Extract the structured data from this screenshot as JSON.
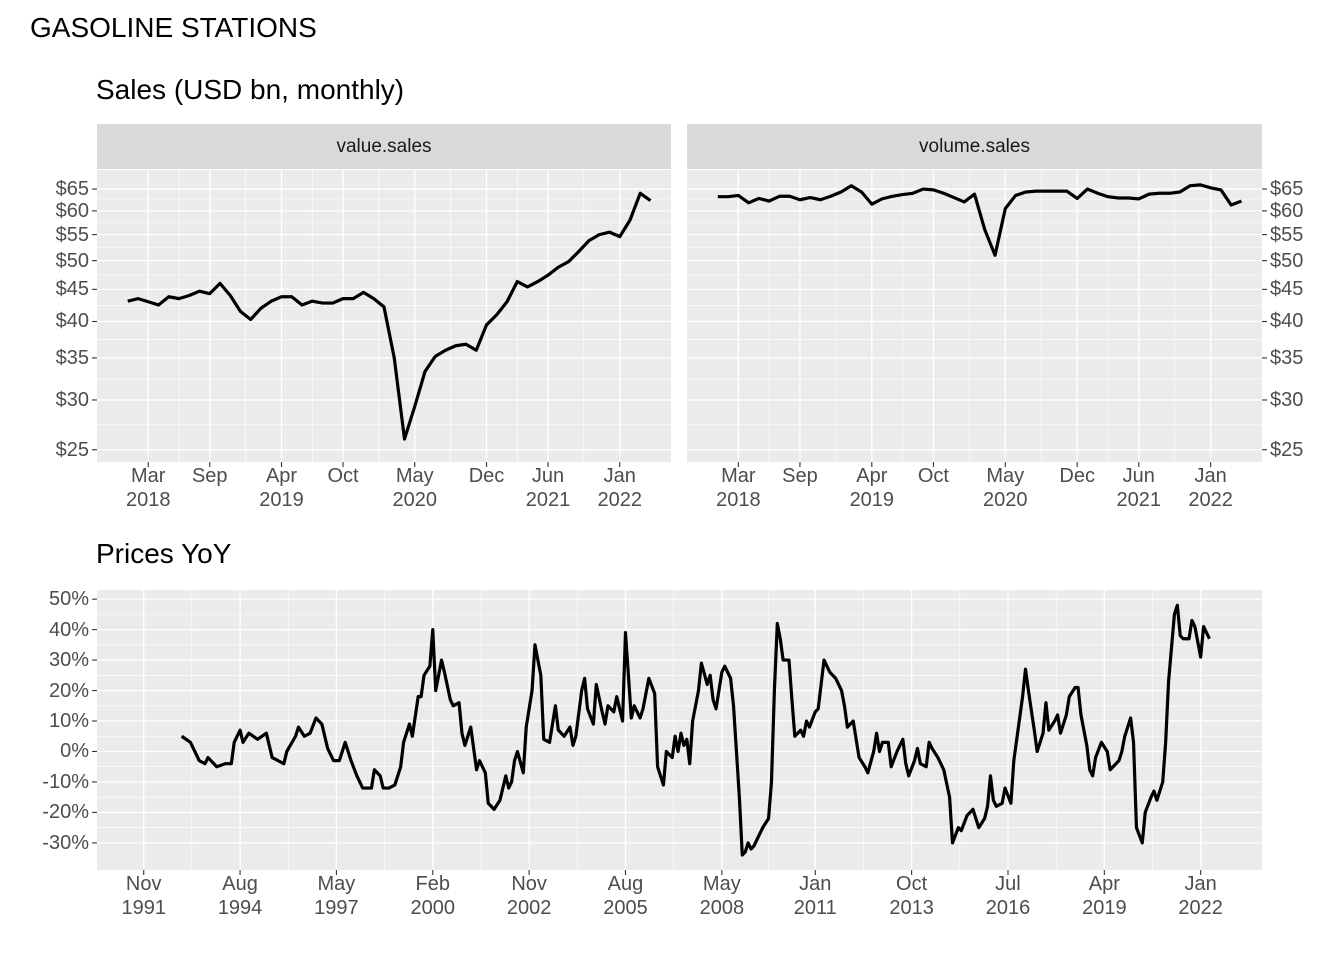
{
  "title": "GASOLINE STATIONS",
  "chart_data": [
    {
      "type": "line",
      "title": "Sales (USD bn, monthly)",
      "facet": true,
      "log_scale": true,
      "grid": true,
      "x": [
        "2018-01",
        "2018-02",
        "2018-03",
        "2018-04",
        "2018-05",
        "2018-06",
        "2018-07",
        "2018-08",
        "2018-09",
        "2018-10",
        "2018-11",
        "2018-12",
        "2019-01",
        "2019-02",
        "2019-03",
        "2019-04",
        "2019-05",
        "2019-06",
        "2019-07",
        "2019-08",
        "2019-09",
        "2019-10",
        "2019-11",
        "2019-12",
        "2020-01",
        "2020-02",
        "2020-03",
        "2020-04",
        "2020-05",
        "2020-06",
        "2020-07",
        "2020-08",
        "2020-09",
        "2020-10",
        "2020-11",
        "2020-12",
        "2021-01",
        "2021-02",
        "2021-03",
        "2021-04",
        "2021-05",
        "2021-06",
        "2021-07",
        "2021-08",
        "2021-09",
        "2021-10",
        "2021-11",
        "2021-12",
        "2022-01",
        "2022-02",
        "2022-03",
        "2022-04"
      ],
      "series": [
        {
          "name": "value.sales",
          "color": "#000000",
          "values": [
            43.1,
            43.5,
            43,
            42.5,
            43.8,
            43.5,
            44,
            44.7,
            44.3,
            46,
            44,
            41.5,
            40.3,
            42,
            43.1,
            43.8,
            43.8,
            42.5,
            43.1,
            42.8,
            42.8,
            43.5,
            43.5,
            44.5,
            43.5,
            42.2,
            35,
            26,
            29.3,
            33.3,
            35.2,
            36,
            36.6,
            36.8,
            36,
            39.5,
            41,
            43,
            46.3,
            45.4,
            46.3,
            47.4,
            48.8,
            49.8,
            51.7,
            53.8,
            55,
            55.5,
            54.6,
            58,
            64,
            62.3
          ]
        },
        {
          "name": "volume.sales",
          "color": "#000000",
          "values": [
            63.2,
            63.2,
            63.5,
            61.8,
            62.8,
            62.2,
            63.3,
            63.3,
            62.5,
            63,
            62.5,
            63.3,
            64.3,
            65.8,
            64.3,
            61.5,
            62.7,
            63.3,
            63.7,
            64,
            65,
            64.8,
            64,
            63,
            62,
            63.8,
            56,
            51,
            60.5,
            63.5,
            64.3,
            64.5,
            64.5,
            64.5,
            64.5,
            62.8,
            65,
            64,
            63.2,
            62.9,
            62.9,
            62.7,
            63.8,
            64,
            64,
            64.3,
            65.8,
            66,
            65.3,
            64.8,
            61.3,
            62.2
          ]
        }
      ],
      "xlim": [
        "2017-10",
        "2022-06"
      ],
      "xticks": [
        {
          "value": "2018-03",
          "label": "Mar\n2018"
        },
        {
          "value": "2018-09",
          "label": "Sep"
        },
        {
          "value": "2019-04",
          "label": "Apr\n2019"
        },
        {
          "value": "2019-10",
          "label": "Oct"
        },
        {
          "value": "2020-05",
          "label": "May\n2020"
        },
        {
          "value": "2020-12",
          "label": "Dec"
        },
        {
          "value": "2021-06",
          "label": "Jun\n2021"
        },
        {
          "value": "2022-01",
          "label": "Jan\n2022"
        }
      ],
      "ylim": [
        23.9,
        69.7
      ],
      "yticks": [
        {
          "value": 25,
          "label": "$25"
        },
        {
          "value": 30,
          "label": "$30"
        },
        {
          "value": 35,
          "label": "$35"
        },
        {
          "value": 40,
          "label": "$40"
        },
        {
          "value": 45,
          "label": "$45"
        },
        {
          "value": 50,
          "label": "$50"
        },
        {
          "value": 55,
          "label": "$55"
        },
        {
          "value": 60,
          "label": "$60"
        },
        {
          "value": 65,
          "label": "$65"
        }
      ]
    },
    {
      "type": "line",
      "title": "Prices YoY",
      "facet": false,
      "log_scale": false,
      "grid": true,
      "x": [
        "1992-12",
        "1993-03",
        "1993-06",
        "1993-08",
        "1993-09",
        "1993-12",
        "1994-03",
        "1994-05",
        "1994-06",
        "1994-08",
        "1994-09",
        "1994-11",
        "1995-02",
        "1995-05",
        "1995-07",
        "1995-09",
        "1995-11",
        "1995-12",
        "1996-03",
        "1996-04",
        "1996-06",
        "1996-08",
        "1996-10",
        "1996-12",
        "1997-02",
        "1997-04",
        "1997-06",
        "1997-08",
        "1997-10",
        "1997-12",
        "1998-02",
        "1998-05",
        "1998-06",
        "1998-08",
        "1998-09",
        "1998-11",
        "1999-01",
        "1999-03",
        "1999-04",
        "1999-06",
        "1999-07",
        "1999-09",
        "1999-10",
        "1999-11",
        "2000-01",
        "2000-02",
        "2000-03",
        "2000-05",
        "2000-06",
        "2000-08",
        "2000-09",
        "2000-11",
        "2000-12",
        "2001-01",
        "2001-03",
        "2001-05",
        "2001-06",
        "2001-08",
        "2001-09",
        "2001-11",
        "2002-01",
        "2002-03",
        "2002-04",
        "2002-05",
        "2002-06",
        "2002-07",
        "2002-09",
        "2002-10",
        "2002-12",
        "2003-01",
        "2003-03",
        "2003-04",
        "2003-06",
        "2003-08",
        "2003-09",
        "2003-11",
        "2004-01",
        "2004-02",
        "2004-03",
        "2004-05",
        "2004-06",
        "2004-07",
        "2004-09",
        "2004-10",
        "2004-12",
        "2005-01",
        "2005-02",
        "2005-04",
        "2005-05",
        "2005-07",
        "2005-08",
        "2005-10",
        "2005-11",
        "2006-01",
        "2006-02",
        "2006-04",
        "2006-06",
        "2006-07",
        "2006-09",
        "2006-10",
        "2006-12",
        "2007-01",
        "2007-02",
        "2007-03",
        "2007-04",
        "2007-05",
        "2007-06",
        "2007-07",
        "2007-09",
        "2007-10",
        "2007-12",
        "2008-01",
        "2008-02",
        "2008-03",
        "2008-05",
        "2008-06",
        "2008-08",
        "2008-09",
        "2008-11",
        "2008-12",
        "2009-01",
        "2009-02",
        "2009-03",
        "2009-04",
        "2009-06",
        "2009-07",
        "2009-09",
        "2009-10",
        "2009-11",
        "2009-12",
        "2010-01",
        "2010-02",
        "2010-04",
        "2010-05",
        "2010-06",
        "2010-08",
        "2010-09",
        "2010-10",
        "2010-11",
        "2011-01",
        "2011-02",
        "2011-03",
        "2011-04",
        "2011-06",
        "2011-08",
        "2011-10",
        "2011-11",
        "2011-12",
        "2012-02",
        "2012-03",
        "2012-04",
        "2012-06",
        "2012-07",
        "2012-09",
        "2012-10",
        "2012-11",
        "2012-12",
        "2013-02",
        "2013-03",
        "2013-05",
        "2013-07",
        "2013-08",
        "2013-09",
        "2013-11",
        "2013-12",
        "2014-01",
        "2014-03",
        "2014-04",
        "2014-05",
        "2014-07",
        "2014-09",
        "2014-11",
        "2014-12",
        "2015-02",
        "2015-03",
        "2015-05",
        "2015-07",
        "2015-08",
        "2015-09",
        "2015-11",
        "2015-12",
        "2016-01",
        "2016-02",
        "2016-03",
        "2016-05",
        "2016-06",
        "2016-08",
        "2016-09",
        "2016-10",
        "2016-12",
        "2017-01",
        "2017-02",
        "2017-04",
        "2017-05",
        "2017-07",
        "2017-08",
        "2017-09",
        "2017-11",
        "2017-12",
        "2018-01",
        "2018-03",
        "2018-04",
        "2018-06",
        "2018-07",
        "2018-08",
        "2018-10",
        "2018-11",
        "2018-12",
        "2019-01",
        "2019-03",
        "2019-05",
        "2019-06",
        "2019-07",
        "2019-09",
        "2019-10",
        "2019-11",
        "2020-01",
        "2020-02",
        "2020-03",
        "2020-05",
        "2020-06",
        "2020-08",
        "2020-09",
        "2020-10",
        "2020-12",
        "2021-01",
        "2021-02",
        "2021-04",
        "2021-05",
        "2021-06",
        "2021-07",
        "2021-09",
        "2021-10",
        "2021-11",
        "2022-01",
        "2022-02",
        "2022-04"
      ],
      "series": [
        {
          "name": "Prices YoY",
          "color": "#000000",
          "values": [
            5,
            3,
            -3,
            -4,
            -2,
            -5,
            -4,
            -4,
            3,
            7,
            3,
            6,
            4,
            6,
            -2,
            -3,
            -4,
            0,
            5,
            8,
            5,
            6,
            11,
            9,
            1,
            -3,
            -3,
            3,
            -3,
            -8,
            -12,
            -12,
            -6,
            -8,
            -12,
            -12,
            -11,
            -5,
            3,
            9,
            5,
            18,
            18,
            25,
            28,
            40,
            20,
            30,
            26,
            17,
            15,
            16,
            6,
            2,
            8,
            -6,
            -3,
            -7,
            -17,
            -19,
            -16,
            -8,
            -12,
            -10,
            -3,
            0,
            -7,
            8,
            20,
            35,
            25,
            4,
            3,
            15,
            7,
            5,
            8,
            2,
            5,
            20,
            24,
            14,
            9,
            22,
            13,
            9,
            15,
            13,
            18,
            10,
            39,
            11,
            15,
            11,
            14,
            24,
            19,
            -5,
            -11,
            0,
            -2,
            5,
            0,
            6,
            2,
            4,
            -4,
            10,
            20,
            29,
            22,
            25,
            17,
            14,
            26,
            28,
            24,
            15,
            -15,
            -34,
            -33,
            -30,
            -32,
            -31,
            -27,
            -25,
            -22,
            -10,
            20,
            42,
            37,
            30,
            30,
            17,
            5,
            7,
            5,
            10,
            8,
            13,
            14,
            22,
            30,
            26,
            24,
            20,
            15,
            8,
            10,
            4,
            -2,
            -5,
            -7,
            0,
            6,
            0,
            3,
            3,
            -5,
            0,
            4,
            -4,
            -8,
            -3,
            1,
            -4,
            -5,
            3,
            1,
            -2,
            -6,
            -15,
            -30,
            -25,
            -26,
            -21,
            -19,
            -22,
            -25,
            -22,
            -18,
            -8,
            -16,
            -18,
            -17,
            -12,
            -17,
            -3,
            4,
            18,
            27,
            20,
            7,
            0,
            6,
            16,
            7,
            10,
            12,
            6,
            12,
            18,
            21,
            21,
            12,
            2,
            -6,
            -8,
            -2,
            3,
            0,
            -6,
            -5,
            -3,
            0,
            5,
            11,
            3,
            -25,
            -30,
            -20,
            -15,
            -13,
            -16,
            -10,
            3,
            23,
            45,
            48,
            38,
            37,
            37,
            43,
            41,
            31,
            41,
            37
          ]
        }
      ],
      "xlim": [
        "1990-07",
        "2023-10"
      ],
      "xticks": [
        {
          "value": "1991-11",
          "label": "Nov\n1991"
        },
        {
          "value": "1994-08",
          "label": "Aug\n1994"
        },
        {
          "value": "1997-05",
          "label": "May\n1997"
        },
        {
          "value": "2000-02",
          "label": "Feb\n2000"
        },
        {
          "value": "2002-11",
          "label": "Nov\n2002"
        },
        {
          "value": "2005-08",
          "label": "Aug\n2005"
        },
        {
          "value": "2008-05",
          "label": "May\n2008"
        },
        {
          "value": "2011-01",
          "label": "Jan\n2011"
        },
        {
          "value": "2013-10",
          "label": "Oct\n2013"
        },
        {
          "value": "2016-07",
          "label": "Jul\n2016"
        },
        {
          "value": "2019-04",
          "label": "Apr\n2019"
        },
        {
          "value": "2022-01",
          "label": "Jan\n2022"
        }
      ],
      "ylim": [
        -38.9,
        53
      ],
      "yticks": [
        {
          "value": -30,
          "label": "-30%"
        },
        {
          "value": -20,
          "label": "-20%"
        },
        {
          "value": -10,
          "label": "-10%"
        },
        {
          "value": 0,
          "label": "0%"
        },
        {
          "value": 10,
          "label": "10%"
        },
        {
          "value": 20,
          "label": "20%"
        },
        {
          "value": 30,
          "label": "30%"
        },
        {
          "value": 40,
          "label": "40%"
        },
        {
          "value": 50,
          "label": "50%"
        }
      ]
    }
  ]
}
